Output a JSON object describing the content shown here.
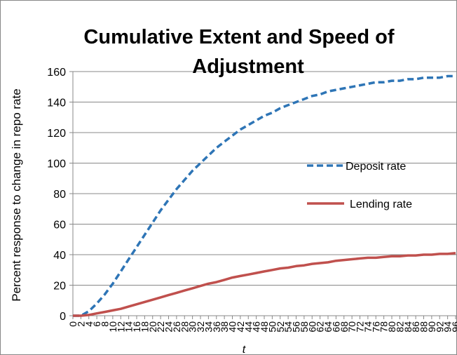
{
  "chart_data": {
    "type": "line",
    "title": "Cumulative Extent and Speed of Adjustment",
    "xlabel": "t",
    "ylabel": "Percent response to change in repo rate",
    "ylim": [
      0,
      160
    ],
    "yticks": [
      0,
      20,
      40,
      60,
      80,
      100,
      120,
      140,
      160
    ],
    "xlim": [
      0,
      96
    ],
    "xticks": [
      0,
      2,
      4,
      6,
      8,
      10,
      12,
      14,
      16,
      18,
      20,
      22,
      24,
      26,
      28,
      30,
      32,
      34,
      36,
      38,
      40,
      42,
      44,
      46,
      48,
      50,
      52,
      54,
      56,
      58,
      60,
      62,
      64,
      66,
      68,
      70,
      72,
      74,
      76,
      78,
      80,
      82,
      84,
      86,
      88,
      90,
      92,
      94,
      96
    ],
    "grid": "horizontal",
    "legend": "right",
    "x": [
      0,
      2,
      4,
      6,
      8,
      10,
      12,
      14,
      16,
      18,
      20,
      22,
      24,
      26,
      28,
      30,
      32,
      34,
      36,
      38,
      40,
      42,
      44,
      46,
      48,
      50,
      52,
      54,
      56,
      58,
      60,
      62,
      64,
      66,
      68,
      70,
      72,
      74,
      76,
      78,
      80,
      82,
      84,
      86,
      88,
      90,
      92,
      94,
      96
    ],
    "series": [
      {
        "name": "Deposit rate",
        "color": "#2e75b6",
        "style": "dashed",
        "values": [
          0,
          0,
          3,
          8,
          14,
          21,
          29,
          37,
          45,
          53,
          61,
          69,
          76,
          83,
          89,
          95,
          100,
          105,
          110,
          114,
          118,
          122,
          125,
          128,
          131,
          133,
          136,
          138,
          140,
          142,
          144,
          145,
          147,
          148,
          149,
          150,
          151,
          152,
          153,
          153,
          154,
          154,
          155,
          155,
          156,
          156,
          156,
          157,
          157
        ]
      },
      {
        "name": "Lending rate",
        "color": "#c0504d",
        "style": "solid",
        "values": [
          0,
          0,
          0.5,
          1.5,
          2.5,
          3.5,
          4.5,
          6,
          7.5,
          9,
          10.5,
          12,
          13.5,
          15,
          16.5,
          18,
          19.5,
          21,
          22,
          23.5,
          25,
          26,
          27,
          28,
          29,
          30,
          31,
          31.5,
          32.5,
          33,
          34,
          34.5,
          35,
          36,
          36.5,
          37,
          37.5,
          38,
          38,
          38.5,
          39,
          39,
          39.5,
          39.5,
          40,
          40,
          40.5,
          40.5,
          41
        ]
      }
    ]
  }
}
